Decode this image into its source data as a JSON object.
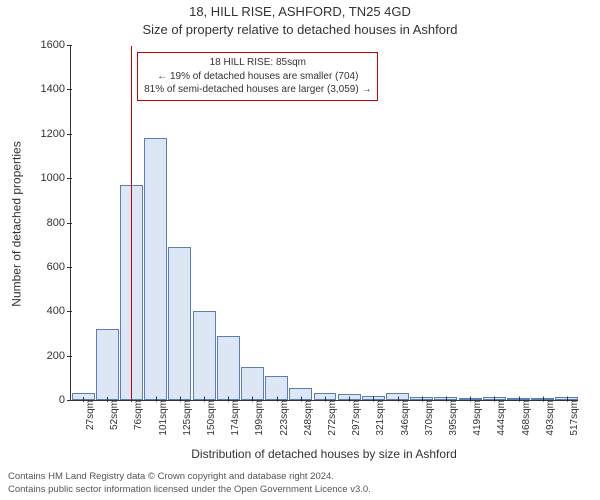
{
  "titles": {
    "main": "18, HILL RISE, ASHFORD, TN25 4GD",
    "sub": "Size of property relative to detached houses in Ashford"
  },
  "axes": {
    "ylabel": "Number of detached properties",
    "xlabel": "Distribution of detached houses by size in Ashford",
    "ylim_max": 1600,
    "yticks": [
      0,
      200,
      400,
      600,
      800,
      1000,
      1200,
      1400,
      1600
    ],
    "xticks": [
      "27sqm",
      "52sqm",
      "76sqm",
      "101sqm",
      "125sqm",
      "150sqm",
      "174sqm",
      "199sqm",
      "223sqm",
      "248sqm",
      "272sqm",
      "297sqm",
      "321sqm",
      "346sqm",
      "370sqm",
      "395sqm",
      "419sqm",
      "444sqm",
      "468sqm",
      "493sqm",
      "517sqm"
    ]
  },
  "chart": {
    "type": "histogram",
    "bar_fill": "#dce6f4",
    "bar_stroke": "#5a7fb8",
    "values": [
      30,
      320,
      970,
      1180,
      690,
      400,
      290,
      150,
      110,
      55,
      30,
      25,
      20,
      30,
      15,
      15,
      8,
      12,
      8,
      8,
      12
    ],
    "bar_width_ratio": 0.95
  },
  "marker": {
    "color": "#cc0000",
    "x_value": 85,
    "x_range_start": 27,
    "x_range_end": 517
  },
  "annotation": {
    "line1": "18 HILL RISE: 85sqm",
    "line2": "← 19% of detached houses are smaller (704)",
    "line3": "81% of semi-detached houses are larger (3,059) →"
  },
  "attribution": {
    "line1": "Contains HM Land Registry data © Crown copyright and database right 2024.",
    "line2": "Contains public sector information licensed under the Open Government Licence v3.0."
  }
}
